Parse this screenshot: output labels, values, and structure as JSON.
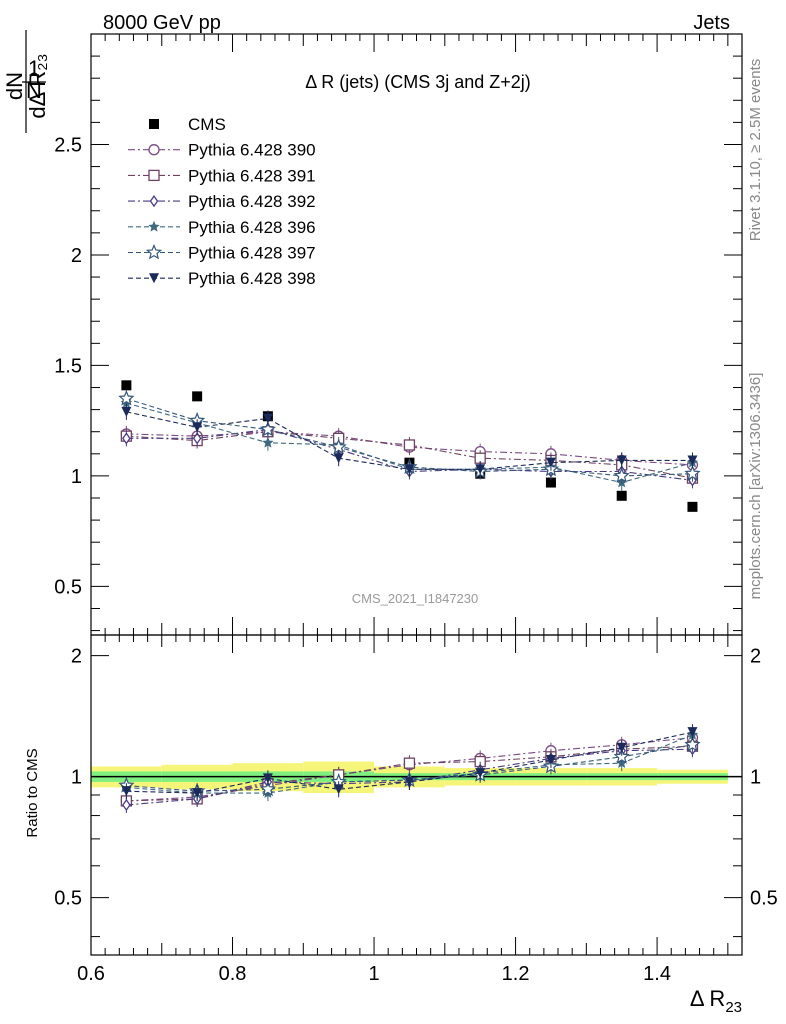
{
  "header": {
    "left": "8000 GeV pp",
    "right": "Jets"
  },
  "side": {
    "rivet": "Rivet 3.1.10, ≥ 2.5M events",
    "mcplots": "mcplots.cern.ch [arXiv:1306.3436]"
  },
  "watermark": "CMS_2021_I1847230",
  "chart_data": [
    {
      "type": "scatter",
      "panel": "main",
      "title": "Δ R (jets) (CMS 3j and Z+2j)",
      "ylabel": "1/N dN/dΔ R23",
      "xlim": [
        0.6,
        1.52
      ],
      "ylim": [
        0.28,
        3.0
      ],
      "yticks": [
        0.5,
        1,
        1.5,
        2,
        2.5
      ],
      "ytick_labels": [
        "0.5",
        "1",
        "1.5",
        "2",
        "2.5"
      ],
      "x": [
        0.65,
        0.75,
        0.85,
        0.95,
        1.05,
        1.15,
        1.25,
        1.35,
        1.45
      ],
      "legend_position": "top-left",
      "series": [
        {
          "name": "CMS",
          "color": "#000000",
          "marker": "square-filled",
          "line": "none",
          "values": [
            1.41,
            1.36,
            1.27,
            1.17,
            1.06,
            1.01,
            0.97,
            0.91,
            0.86
          ]
        },
        {
          "name": "Pythia 6.428 390",
          "color": "#7a4a86",
          "marker": "circle-open",
          "line": "dashdot",
          "values": [
            1.19,
            1.18,
            1.2,
            1.18,
            1.13,
            1.11,
            1.1,
            1.07,
            1.05
          ]
        },
        {
          "name": "Pythia 6.428 391",
          "color": "#6e4262",
          "marker": "square-open",
          "line": "dashdot",
          "values": [
            1.18,
            1.16,
            1.2,
            1.17,
            1.14,
            1.08,
            1.07,
            1.05,
            0.99
          ]
        },
        {
          "name": "Pythia 6.428 392",
          "color": "#4a3a86",
          "marker": "diamond-open",
          "line": "dashdot",
          "values": [
            1.17,
            1.17,
            1.21,
            1.12,
            1.02,
            1.03,
            1.02,
            1.02,
            0.98
          ]
        },
        {
          "name": "Pythia 6.428 396",
          "color": "#3f6a80",
          "marker": "star-filled",
          "line": "dashed",
          "values": [
            1.33,
            1.24,
            1.15,
            1.14,
            1.03,
            1.03,
            1.04,
            0.97,
            1.06
          ]
        },
        {
          "name": "Pythia 6.428 397",
          "color": "#35577a",
          "marker": "star-open",
          "line": "dashed",
          "values": [
            1.35,
            1.25,
            1.21,
            1.13,
            1.04,
            1.02,
            1.03,
            1.0,
            1.01
          ]
        },
        {
          "name": "Pythia 6.428 398",
          "color": "#1a2a5a",
          "marker": "triangle-down-filled",
          "line": "dashed",
          "values": [
            1.29,
            1.22,
            1.26,
            1.08,
            1.03,
            1.03,
            1.06,
            1.07,
            1.07
          ]
        }
      ]
    },
    {
      "type": "scatter",
      "panel": "ratio",
      "ylabel": "Ratio to CMS",
      "xlabel": "Δ R23",
      "xlim": [
        0.6,
        1.52
      ],
      "ylim": [
        0.36,
        2.25
      ],
      "yticks": [
        0.5,
        1,
        2
      ],
      "ytick_labels": [
        "0.5",
        "1",
        "2"
      ],
      "xticks": [
        0.6,
        0.8,
        1.0,
        1.2,
        1.4
      ],
      "xtick_labels": [
        "0.6",
        "0.8",
        "1",
        "1.2",
        "1.4"
      ],
      "x": [
        0.65,
        0.75,
        0.85,
        0.95,
        1.05,
        1.15,
        1.25,
        1.35,
        1.45
      ],
      "band_green": [
        0.03,
        0.03,
        0.03,
        0.03,
        0.02,
        0.02,
        0.02,
        0.02,
        0.02
      ],
      "band_yellow": [
        0.06,
        0.07,
        0.08,
        0.09,
        0.06,
        0.05,
        0.05,
        0.05,
        0.04
      ],
      "series": [
        {
          "name": "Pythia 6.428 390",
          "color": "#7a4a86",
          "marker": "circle-open",
          "line": "dashdot",
          "values": [
            0.87,
            0.89,
            0.95,
            1.01,
            1.07,
            1.11,
            1.16,
            1.2,
            1.25
          ]
        },
        {
          "name": "Pythia 6.428 391",
          "color": "#6e4262",
          "marker": "square-open",
          "line": "dashdot",
          "values": [
            0.87,
            0.88,
            0.96,
            1.01,
            1.08,
            1.09,
            1.12,
            1.17,
            1.19
          ]
        },
        {
          "name": "Pythia 6.428 392",
          "color": "#4a3a86",
          "marker": "diamond-open",
          "line": "dashdot",
          "values": [
            0.85,
            0.88,
            0.97,
            0.96,
            0.97,
            1.04,
            1.11,
            1.16,
            1.17
          ]
        },
        {
          "name": "Pythia 6.428 396",
          "color": "#3f6a80",
          "marker": "star-filled",
          "line": "dashed",
          "values": [
            0.94,
            0.91,
            0.91,
            0.97,
            0.98,
            1.02,
            1.07,
            1.08,
            1.27
          ]
        },
        {
          "name": "Pythia 6.428 397",
          "color": "#35577a",
          "marker": "star-open",
          "line": "dashed",
          "values": [
            0.95,
            0.92,
            0.93,
            0.97,
            0.98,
            1.01,
            1.06,
            1.12,
            1.2
          ]
        },
        {
          "name": "Pythia 6.428 398",
          "color": "#1a2a5a",
          "marker": "triangle-down-filled",
          "line": "dashed",
          "values": [
            0.92,
            0.91,
            0.99,
            0.93,
            0.97,
            1.02,
            1.1,
            1.18,
            1.29
          ]
        }
      ]
    }
  ]
}
